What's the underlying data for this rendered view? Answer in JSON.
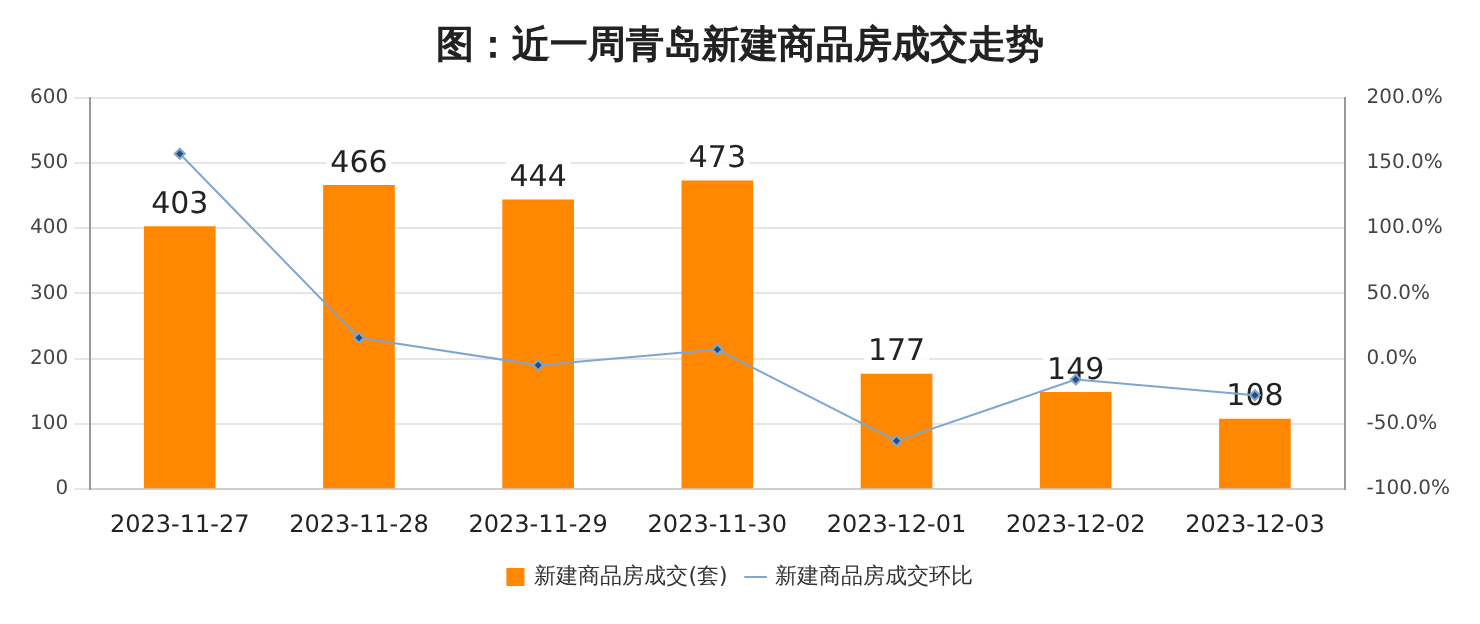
{
  "chart_data": {
    "type": "bar",
    "title": "图：近一周青岛新建商品房成交走势",
    "categories": [
      "2023-11-27",
      "2023-11-28",
      "2023-11-29",
      "2023-11-30",
      "2023-12-01",
      "2023-12-02",
      "2023-12-03"
    ],
    "series": [
      {
        "name": "新建商品房成交(套)",
        "color": "#ff8800",
        "values": [
          403,
          466,
          444,
          473,
          177,
          149,
          108
        ],
        "value_labels": [
          "403",
          "466",
          "444",
          "473",
          "177",
          "149",
          "108"
        ]
      },
      {
        "name": "新建商品房成交环比",
        "type": "line",
        "axis": "y2",
        "color": "#7fa6d1",
        "marker": "diamond",
        "values": [
          157,
          16,
          -5,
          7,
          -63,
          -16,
          -28
        ]
      }
    ],
    "ylim": [
      0,
      600
    ],
    "yticks": [
      0,
      100,
      200,
      300,
      400,
      500,
      600
    ],
    "y2lim": [
      -100,
      200
    ],
    "y2ticks": [
      {
        "value": -100,
        "label": "-100.0%"
      },
      {
        "value": -50,
        "label": "-50.0%"
      },
      {
        "value": 0,
        "label": "0.0%"
      },
      {
        "value": 50,
        "label": "50.0%"
      },
      {
        "value": 100,
        "label": "100.0%"
      },
      {
        "value": 150,
        "label": "150.0%"
      },
      {
        "value": 200,
        "label": "200.0%"
      }
    ],
    "grid": "y",
    "legend": "bottom"
  }
}
